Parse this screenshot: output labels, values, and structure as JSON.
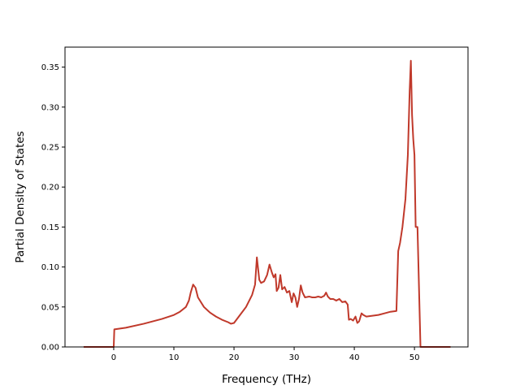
{
  "chart_data": {
    "type": "line",
    "title": "",
    "xlabel": "Frequency (THz)",
    "ylabel": "Partial Density of States",
    "xlim": [
      -8.1,
      58.9
    ],
    "ylim": [
      0.0,
      0.375
    ],
    "xticks": [
      0,
      10,
      20,
      30,
      40,
      50
    ],
    "yticks": [
      0.0,
      0.05,
      0.1,
      0.15,
      0.2,
      0.25,
      0.3,
      0.35
    ],
    "xtick_labels": [
      "0",
      "10",
      "20",
      "30",
      "40",
      "50"
    ],
    "ytick_labels": [
      "0.00",
      "0.05",
      "0.10",
      "0.15",
      "0.20",
      "0.25",
      "0.30",
      "0.35"
    ],
    "grid": false,
    "legend": "none",
    "series": [
      {
        "color": "#c0392b",
        "x": [
          -5.0,
          -0.1,
          0.0,
          0.1,
          2.0,
          5.0,
          8.0,
          10.0,
          11.0,
          12.0,
          12.5,
          12.8,
          13.2,
          13.6,
          14.0,
          15.0,
          16.0,
          17.0,
          18.0,
          19.0,
          19.5,
          20.0,
          21.0,
          22.0,
          23.0,
          23.5,
          23.8,
          24.2,
          24.5,
          25.0,
          25.5,
          25.9,
          26.3,
          26.6,
          26.9,
          27.1,
          27.4,
          27.7,
          28.0,
          28.4,
          28.8,
          29.2,
          29.6,
          29.9,
          30.2,
          30.5,
          30.8,
          31.1,
          31.4,
          31.8,
          32.5,
          33.0,
          33.5,
          34.0,
          34.5,
          35.0,
          35.3,
          35.6,
          36.0,
          36.5,
          37.0,
          37.5,
          38.0,
          38.5,
          38.9,
          39.1,
          39.4,
          39.8,
          40.2,
          40.5,
          40.8,
          41.2,
          41.5,
          42.0,
          43.0,
          44.0,
          45.0,
          46.0,
          47.0,
          47.3,
          47.6,
          48.0,
          48.5,
          48.9,
          49.2,
          49.4,
          49.6,
          49.8,
          50.0,
          50.2,
          50.5,
          50.8,
          51.0,
          51.2,
          52.0,
          54.0,
          56.0
        ],
        "values": [
          0.0,
          0.0,
          0.0,
          0.022,
          0.024,
          0.029,
          0.035,
          0.04,
          0.044,
          0.05,
          0.058,
          0.068,
          0.078,
          0.074,
          0.062,
          0.05,
          0.043,
          0.038,
          0.034,
          0.031,
          0.029,
          0.03,
          0.04,
          0.05,
          0.065,
          0.078,
          0.112,
          0.084,
          0.08,
          0.082,
          0.09,
          0.103,
          0.093,
          0.087,
          0.091,
          0.07,
          0.074,
          0.09,
          0.072,
          0.075,
          0.068,
          0.07,
          0.056,
          0.067,
          0.062,
          0.05,
          0.06,
          0.077,
          0.068,
          0.062,
          0.063,
          0.062,
          0.062,
          0.063,
          0.062,
          0.064,
          0.068,
          0.063,
          0.06,
          0.06,
          0.058,
          0.06,
          0.056,
          0.057,
          0.053,
          0.034,
          0.035,
          0.033,
          0.038,
          0.03,
          0.032,
          0.042,
          0.04,
          0.038,
          0.039,
          0.04,
          0.042,
          0.044,
          0.045,
          0.12,
          0.13,
          0.15,
          0.185,
          0.24,
          0.32,
          0.358,
          0.29,
          0.26,
          0.24,
          0.15,
          0.15,
          0.06,
          0.0,
          0.0,
          0.0,
          0.0,
          0.0
        ]
      }
    ]
  }
}
